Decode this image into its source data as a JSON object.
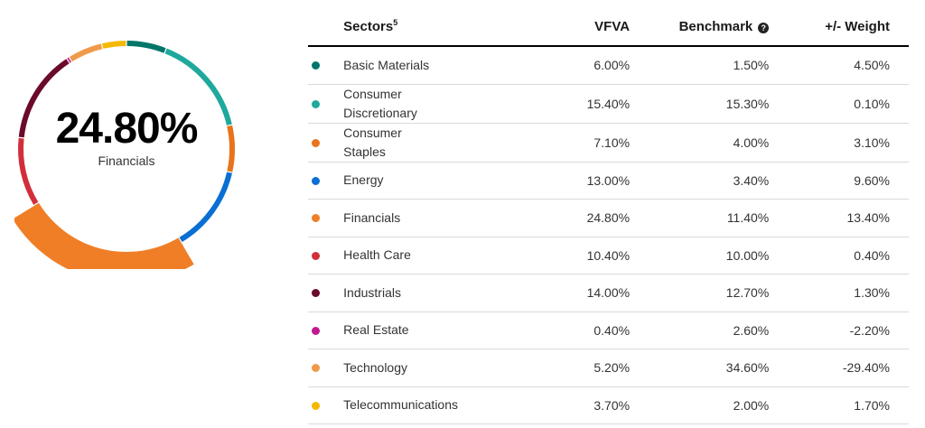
{
  "center": {
    "value": "24.80%",
    "label": "Financials"
  },
  "highlight_sector": "Financials",
  "columns": {
    "sectors": "Sectors",
    "sectors_sup": "5",
    "vfva": "VFVA",
    "benchmark": "Benchmark",
    "weight": "+/- Weight"
  },
  "rows": [
    {
      "sector": "Basic Materials",
      "vfva": "6.00%",
      "benchmark": "1.50%",
      "weight": "4.50%",
      "color": "#00756a"
    },
    {
      "sector": "Consumer Discretionary",
      "vfva": "15.40%",
      "benchmark": "15.30%",
      "weight": "0.10%",
      "color": "#1fa99d"
    },
    {
      "sector": "Consumer Staples",
      "vfva": "7.10%",
      "benchmark": "4.00%",
      "weight": "3.10%",
      "color": "#e8731a"
    },
    {
      "sector": "Energy",
      "vfva": "13.00%",
      "benchmark": "3.40%",
      "weight": "9.60%",
      "color": "#0a6fd3"
    },
    {
      "sector": "Financials",
      "vfva": "24.80%",
      "benchmark": "11.40%",
      "weight": "13.40%",
      "color": "#f07e26"
    },
    {
      "sector": "Health Care",
      "vfva": "10.40%",
      "benchmark": "10.00%",
      "weight": "0.40%",
      "color": "#d12f3c"
    },
    {
      "sector": "Industrials",
      "vfva": "14.00%",
      "benchmark": "12.70%",
      "weight": "1.30%",
      "color": "#6a0a2c"
    },
    {
      "sector": "Real Estate",
      "vfva": "0.40%",
      "benchmark": "2.60%",
      "weight": "-2.20%",
      "color": "#c2188f"
    },
    {
      "sector": "Technology",
      "vfva": "5.20%",
      "benchmark": "34.60%",
      "weight": "-29.40%",
      "color": "#ef9a4a"
    },
    {
      "sector": "Telecommunications",
      "vfva": "3.70%",
      "benchmark": "2.00%",
      "weight": "1.70%",
      "color": "#f5b800"
    }
  ],
  "chart_data": {
    "type": "pie",
    "variant": "donut",
    "categories": [
      "Basic Materials",
      "Consumer Discretionary",
      "Consumer Staples",
      "Energy",
      "Financials",
      "Health Care",
      "Industrials",
      "Real Estate",
      "Technology",
      "Telecommunications"
    ],
    "values": [
      6.0,
      15.4,
      7.1,
      13.0,
      24.8,
      10.4,
      14.0,
      0.4,
      5.2,
      3.7
    ],
    "highlighted": "Financials"
  }
}
